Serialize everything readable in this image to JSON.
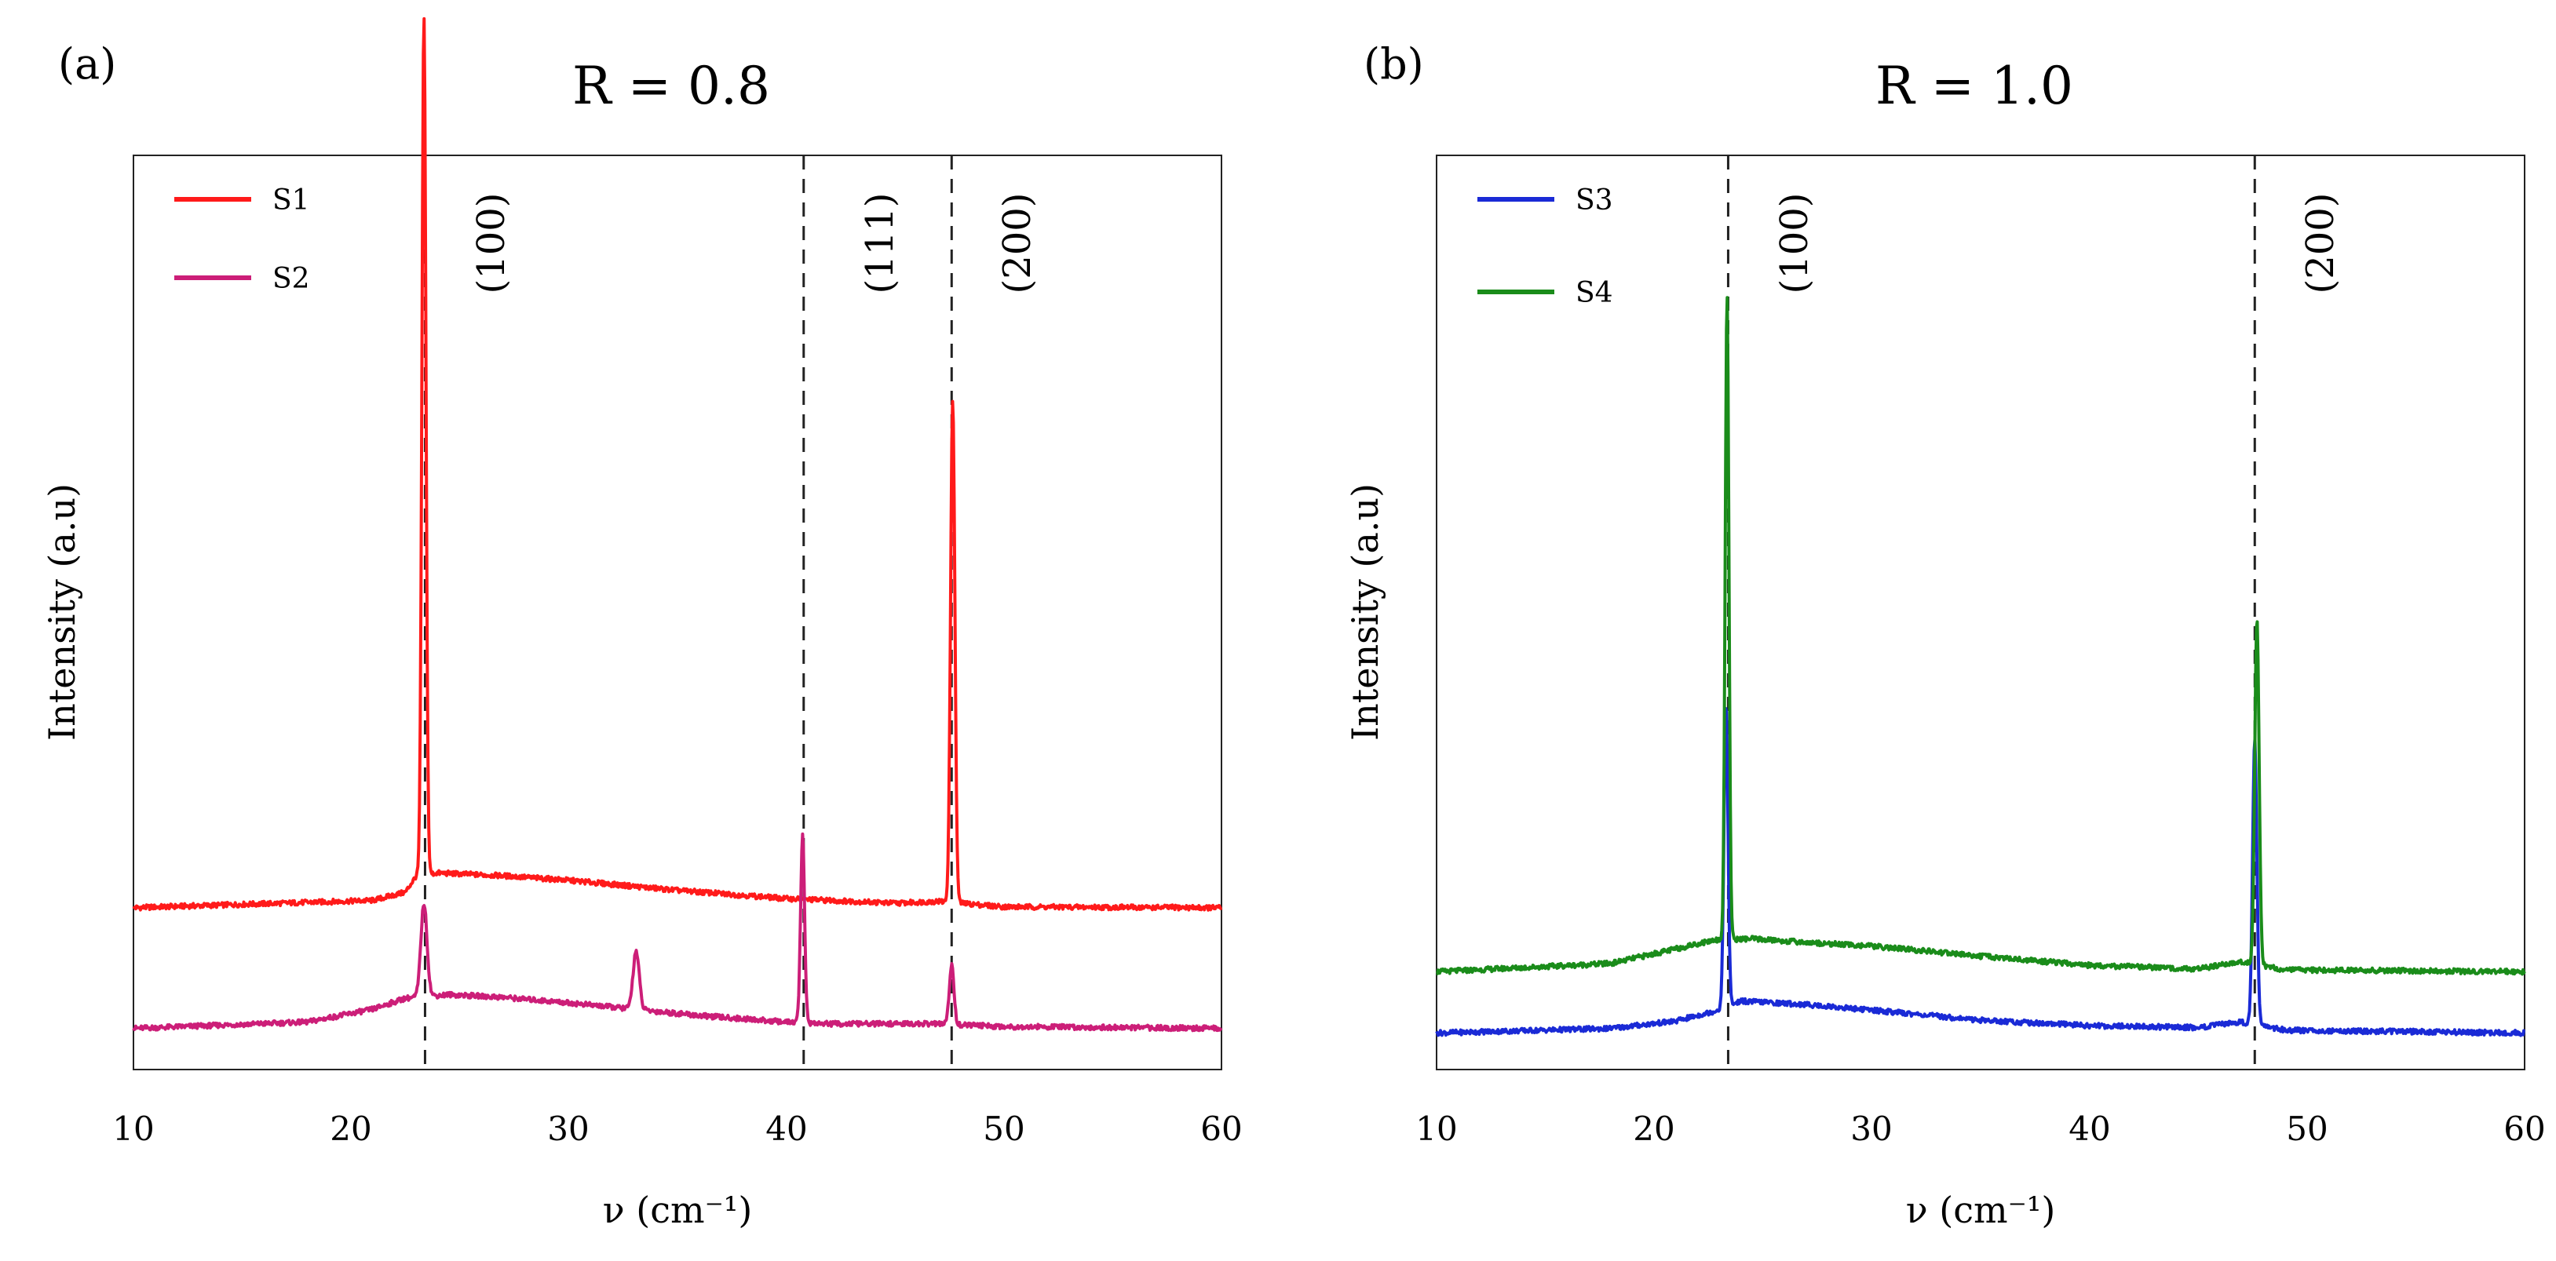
{
  "chart_data": [
    {
      "panel": "(a)",
      "type": "line",
      "title": "R = 0.8",
      "xlabel": "ν (cm⁻¹)",
      "ylabel": "Intensity (a.u)",
      "xlim": [
        10,
        60
      ],
      "ylim": [
        0,
        100
      ],
      "xticks": [
        "10",
        "20",
        "30",
        "40",
        "50",
        "60"
      ],
      "show_y_ticks": false,
      "grid": false,
      "legend_position": "top-left",
      "reference_lines": [
        {
          "x": 23.4,
          "label": "(100)"
        },
        {
          "x": 40.8,
          "label": "(111)"
        },
        {
          "x": 47.6,
          "label": "(200)"
        }
      ],
      "series": [
        {
          "name": "S1",
          "color": "#ff1a1a",
          "baseline": [
            [
              10,
              17.7
            ],
            [
              21,
              18.5
            ],
            [
              22.5,
              19.4
            ],
            [
              23.0,
              21.2
            ],
            [
              24.0,
              21.5
            ],
            [
              27,
              21.2
            ],
            [
              30,
              20.7
            ],
            [
              35,
              19.6
            ],
            [
              40,
              18.7
            ],
            [
              45,
              18.2
            ],
            [
              47.0,
              18.4
            ],
            [
              50,
              17.8
            ],
            [
              60,
              17.7
            ]
          ],
          "peaks": [
            {
              "x": 23.35,
              "height": 94.0,
              "width": 0.13
            },
            {
              "x": 47.65,
              "height": 55.0,
              "width": 0.14
            }
          ]
        },
        {
          "name": "S2",
          "color": "#cc1e78",
          "baseline": [
            [
              10,
              4.5
            ],
            [
              18,
              5.2
            ],
            [
              21,
              6.6
            ],
            [
              22.5,
              7.8
            ],
            [
              24.5,
              8.2
            ],
            [
              27,
              7.9
            ],
            [
              30,
              7.3
            ],
            [
              33,
              6.6
            ],
            [
              36,
              5.9
            ],
            [
              40,
              5.2
            ],
            [
              42,
              5.0
            ],
            [
              47,
              5.0
            ],
            [
              50,
              4.7
            ],
            [
              60,
              4.5
            ]
          ],
          "peaks": [
            {
              "x": 23.35,
              "height": 10.2,
              "width": 0.2
            },
            {
              "x": 33.1,
              "height": 6.4,
              "width": 0.2
            },
            {
              "x": 40.75,
              "height": 20.5,
              "width": 0.13
            },
            {
              "x": 47.6,
              "height": 6.5,
              "width": 0.15
            }
          ]
        }
      ]
    },
    {
      "panel": "(b)",
      "type": "line",
      "title": "R = 1.0",
      "xlabel": "ν (cm⁻¹)",
      "ylabel": "Intensity (a.u)",
      "xlim": [
        10,
        60
      ],
      "ylim": [
        0,
        100
      ],
      "xticks": [
        "10",
        "20",
        "30",
        "40",
        "50",
        "60"
      ],
      "show_y_ticks": false,
      "grid": false,
      "legend_position": "top-left",
      "reference_lines": [
        {
          "x": 23.4,
          "label": "(100)"
        },
        {
          "x": 47.6,
          "label": "(200)"
        }
      ],
      "series": [
        {
          "name": "S3",
          "color": "#1a2ad6",
          "baseline": [
            [
              10,
              4.0
            ],
            [
              18,
              4.5
            ],
            [
              21,
              5.3
            ],
            [
              22.8,
              6.4
            ],
            [
              24.0,
              7.5
            ],
            [
              27,
              7.1
            ],
            [
              30,
              6.5
            ],
            [
              35,
              5.4
            ],
            [
              40,
              4.8
            ],
            [
              45,
              4.6
            ],
            [
              47.0,
              5.2
            ],
            [
              49,
              4.3
            ],
            [
              60,
              4.0
            ]
          ],
          "peaks": [
            {
              "x": 23.3,
              "height": 33.0,
              "width": 0.13
            },
            {
              "x": 47.6,
              "height": 31.0,
              "width": 0.14
            }
          ]
        },
        {
          "name": "S4",
          "color": "#1a8c1a",
          "baseline": [
            [
              10,
              10.7
            ],
            [
              18,
              11.6
            ],
            [
              21,
              13.2
            ],
            [
              22.8,
              14.2
            ],
            [
              24.5,
              14.3
            ],
            [
              27,
              13.9
            ],
            [
              30,
              13.5
            ],
            [
              35,
              12.4
            ],
            [
              40,
              11.4
            ],
            [
              45,
              11.0
            ],
            [
              47.0,
              11.8
            ],
            [
              49,
              10.9
            ],
            [
              60,
              10.7
            ]
          ],
          "peaks": [
            {
              "x": 23.35,
              "height": 70.5,
              "width": 0.12
            },
            {
              "x": 47.7,
              "height": 38.0,
              "width": 0.14
            }
          ]
        }
      ]
    }
  ]
}
